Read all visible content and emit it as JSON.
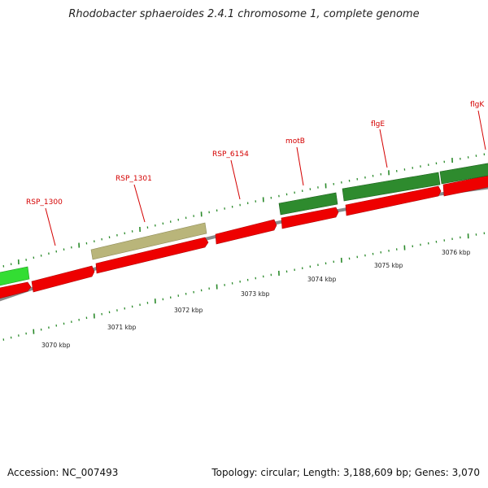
{
  "title": "Rhodobacter sphaeroides 2.4.1 chromosome 1, complete genome",
  "footer": {
    "accession": "Accession: NC_007493",
    "summary": "Topology: circular; Length: 3,188,609 bp; Genes: 3,070"
  },
  "colors": {
    "cds": "#ee0000",
    "gene_green": "#2e8b2e",
    "gene_lightgreen": "#33dd33",
    "gene_olive": "#b9b57a",
    "backbone": "#8a8a8a",
    "ticks": "#2a8a2a",
    "label": "#d40000"
  },
  "gene_labels": [
    "RSP_1300",
    "RSP_1301",
    "RSP_6154",
    "motB",
    "flgE",
    "flgK"
  ],
  "kbp_labels": [
    "3070 kbp",
    "3071 kbp",
    "3072 kbp",
    "3073 kbp",
    "3074 kbp",
    "3075 kbp",
    "3076 kbp"
  ]
}
